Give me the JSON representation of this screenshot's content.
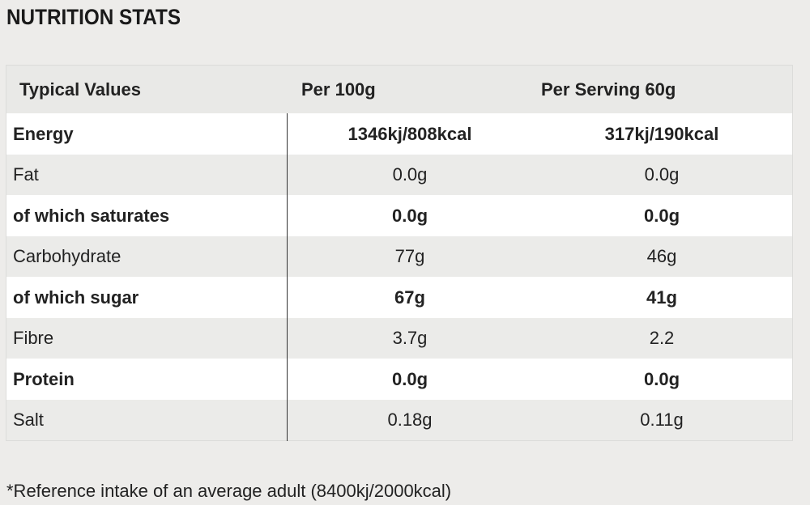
{
  "title": "NUTRITION STATS",
  "table": {
    "headers": [
      "Typical Values",
      "Per 100g",
      "Per Serving 60g"
    ],
    "rows": [
      {
        "label": "Energy",
        "per100": "1346kj/808kcal",
        "serving": "317kj/190kcal",
        "bold": true
      },
      {
        "label": "Fat",
        "per100": "0.0g",
        "serving": "0.0g",
        "bold": false
      },
      {
        "label": "of which saturates",
        "per100": "0.0g",
        "serving": "0.0g",
        "bold": true
      },
      {
        "label": "Carbohydrate",
        "per100": "77g",
        "serving": "46g",
        "bold": false
      },
      {
        "label": "of which sugar",
        "per100": "67g",
        "serving": "41g",
        "bold": true
      },
      {
        "label": "Fibre",
        "per100": "3.7g",
        "serving": "2.2",
        "bold": false
      },
      {
        "label": "Protein",
        "per100": "0.0g",
        "serving": "0.0g",
        "bold": true
      },
      {
        "label": "Salt",
        "per100": "0.18g",
        "serving": "0.11g",
        "bold": false
      }
    ]
  },
  "footnote": "*Reference intake of an average adult (8400kj/2000kcal)"
}
